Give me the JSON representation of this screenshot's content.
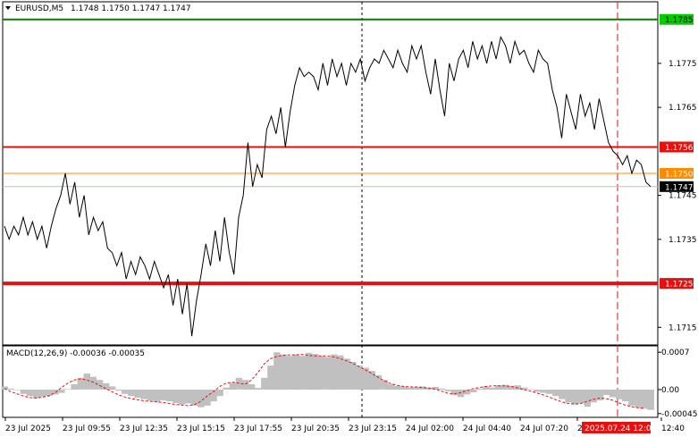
{
  "header": {
    "symbol": "EURUSD,M5",
    "ohlc": "1.1748 1.1750 1.1747 1.1747"
  },
  "macd": {
    "label": "MACD(12,26,9) -0.00036 -0.00035",
    "axis": [
      "0.0007",
      "0.00",
      "-0.00045"
    ]
  },
  "price_axis": {
    "ticks": [
      "1.1775",
      "1.1765",
      "1.1745",
      "1.1735",
      "1.1715"
    ]
  },
  "levels": [
    {
      "label": "1.1785",
      "value": 1.1785,
      "color": "#008000",
      "text_color": "#000000"
    },
    {
      "label": "1.1756",
      "value": 1.1756,
      "color": "#e8100e",
      "text_color": "#ffffff"
    },
    {
      "label": "1.1750",
      "value": 1.175,
      "color": "#ff8c00",
      "text_color": "#ffffff"
    },
    {
      "label": "1.1747",
      "value": 1.1747,
      "color": "#000000",
      "text_color": "#ffffff"
    },
    {
      "label": "1.1725",
      "value": 1.1725,
      "color": "#e8100e",
      "text_color": "#ffffff"
    }
  ],
  "time_axis": {
    "labels": [
      "23 Jul 2025",
      "23 Jul 09:55",
      "23 Jul 12:35",
      "23 Jul 15:15",
      "23 Jul 17:55",
      "23 Jul 20:35",
      "23 Jul 23:15",
      "24 Jul 02:00",
      "24 Jul 04:40",
      "24 Jul 07:20",
      "24",
      "12:40"
    ],
    "highlight": "2025.07.24 12:00"
  },
  "chart_data": {
    "type": "line",
    "series": [
      {
        "values": [
          1.1738,
          1.1735,
          1.1738,
          1.1736,
          1.174,
          1.1736,
          1.1739,
          1.1735,
          1.1738,
          1.1733,
          1.1738,
          1.1742,
          1.1745,
          1.175,
          1.1743,
          1.1748,
          1.174,
          1.1745,
          1.1736,
          1.174,
          1.1737,
          1.1739,
          1.1733,
          1.1732,
          1.1729,
          1.1732,
          1.1726,
          1.173,
          1.1727,
          1.1731,
          1.1729,
          1.1726,
          1.173,
          1.1727,
          1.1724,
          1.1727,
          1.172,
          1.1726,
          1.1718,
          1.1725,
          1.1713,
          1.1721,
          1.1727,
          1.1734,
          1.1729,
          1.1737,
          1.173,
          1.174,
          1.1732,
          1.1727,
          1.174,
          1.1745,
          1.1757,
          1.1747,
          1.1752,
          1.1749,
          1.176,
          1.1763,
          1.1759,
          1.1765,
          1.1756,
          1.1764,
          1.177,
          1.1774,
          1.1772,
          1.1773,
          1.1772,
          1.1769,
          1.1775,
          1.177,
          1.1776,
          1.1772,
          1.1775,
          1.177,
          1.1775,
          1.1773,
          1.1776,
          1.1771,
          1.1774,
          1.1776,
          1.1775,
          1.1778,
          1.1776,
          1.1774,
          1.1778,
          1.1775,
          1.1773,
          1.1779,
          1.1776,
          1.1779,
          1.1773,
          1.1768,
          1.1776,
          1.1769,
          1.1763,
          1.1775,
          1.1771,
          1.1776,
          1.1778,
          1.1774,
          1.178,
          1.1776,
          1.1779,
          1.1775,
          1.178,
          1.1776,
          1.1781,
          1.1779,
          1.1775,
          1.178,
          1.1777,
          1.1778,
          1.1775,
          1.1773,
          1.1778,
          1.1776,
          1.1775,
          1.1769,
          1.1765,
          1.1758,
          1.1768,
          1.1764,
          1.176,
          1.1768,
          1.1763,
          1.1766,
          1.176,
          1.1767,
          1.1762,
          1.1757,
          1.1755,
          1.1754,
          1.1752,
          1.1754,
          1.175,
          1.1753,
          1.1752,
          1.1748,
          1.1747
        ],
        "color": "#000000"
      }
    ],
    "ylim": [
      1.1711,
      1.1789
    ],
    "title": "",
    "xlabel": "",
    "ylabel": "",
    "grid": false
  },
  "macd_data": {
    "histogram": [
      6e-05,
      2e-05,
      0.0,
      -8e-05,
      -0.00012,
      -0.00016,
      -0.00013,
      -0.00012,
      -9e-05,
      -6e-05,
      1e-05,
      0.0001,
      0.00022,
      0.0003,
      0.00024,
      0.00018,
      0.00012,
      6e-05,
      -2e-05,
      -8e-05,
      -0.00012,
      -0.00015,
      -0.00018,
      -0.00021,
      -0.00023,
      -0.0002,
      -0.00022,
      -0.00025,
      -0.00028,
      -0.00026,
      -0.0003,
      -0.00033,
      -0.0003,
      -0.00022,
      -0.00012,
      4e-05,
      0.00013,
      0.00022,
      0.00018,
      0.0001,
      3e-05,
      0.00022,
      0.00045,
      0.0007,
      0.00066,
      0.00063,
      0.00066,
      0.00063,
      0.00069,
      0.00067,
      0.00063,
      0.00061,
      0.00066,
      0.00064,
      0.00058,
      0.00052,
      0.00045,
      0.00041,
      0.00035,
      0.00027,
      0.00018,
      0.0001,
      7e-05,
      6e-05,
      4e-05,
      5e-05,
      6e-05,
      4e-05,
      5e-05,
      2e-05,
      -3e-05,
      -0.0001,
      -0.00014,
      -9e-05,
      -5e-05,
      2e-05,
      6e-05,
      4e-05,
      8e-05,
      9e-05,
      7e-05,
      8e-05,
      4e-05,
      1e-05,
      -4e-05,
      -6e-05,
      -8e-05,
      -0.00012,
      -0.00018,
      -0.00024,
      -0.00028,
      -0.00026,
      -0.00032,
      -0.00024,
      -0.0002,
      -0.0001,
      -0.00014,
      -0.00018,
      -0.00022,
      -0.0003,
      -0.00034,
      -0.00036,
      -0.00038
    ],
    "signal": [
      2e-05,
      -4e-05,
      -8e-05,
      -0.00012,
      -0.00015,
      -0.00016,
      -0.00014,
      -0.00012,
      -6e-05,
      4e-05,
      0.00012,
      0.00018,
      0.0002,
      0.00018,
      0.00014,
      8e-05,
      2e-05,
      -4e-05,
      -0.0001,
      -0.00014,
      -0.00017,
      -0.00019,
      -0.00021,
      -0.00022,
      -0.00023,
      -0.00024,
      -0.00026,
      -0.00028,
      -0.00029,
      -0.0003,
      -0.00028,
      -0.00022,
      -0.00012,
      -4e-05,
      6e-05,
      0.00012,
      0.00014,
      0.00012,
      0.0001,
      0.00018,
      0.00032,
      0.00048,
      0.00058,
      0.00062,
      0.00064,
      0.00065,
      0.00065,
      0.00066,
      0.00064,
      0.00063,
      0.00063,
      0.00063,
      0.00061,
      0.00058,
      0.00054,
      0.00049,
      0.00043,
      0.00037,
      0.0003,
      0.00023,
      0.00016,
      0.00011,
      8e-05,
      6e-05,
      5e-05,
      5e-05,
      4e-05,
      3e-05,
      1e-05,
      -3e-05,
      -7e-05,
      -8e-05,
      -6e-05,
      -2e-05,
      2e-05,
      4e-05,
      6e-05,
      7e-05,
      7e-05,
      7e-05,
      6e-05,
      3e-05,
      0.0,
      -3e-05,
      -6e-05,
      -0.0001,
      -0.00014,
      -0.00019,
      -0.00023,
      -0.00026,
      -0.00027,
      -0.00026,
      -0.00022,
      -0.00018,
      -0.00016,
      -0.00017,
      -0.0002,
      -0.00025,
      -0.00029,
      -0.00032,
      -0.00034,
      -0.00035
    ],
    "ylim": [
      -0.00052,
      0.00082
    ],
    "hist_color": "#c0c0c0",
    "signal_color": "#e8100e"
  },
  "colors": {
    "background": "#ffffff",
    "frame": "#000000",
    "date_badge": "#e8100e"
  },
  "icons": {
    "symbol_menu": "dropdown-triangle-icon"
  }
}
